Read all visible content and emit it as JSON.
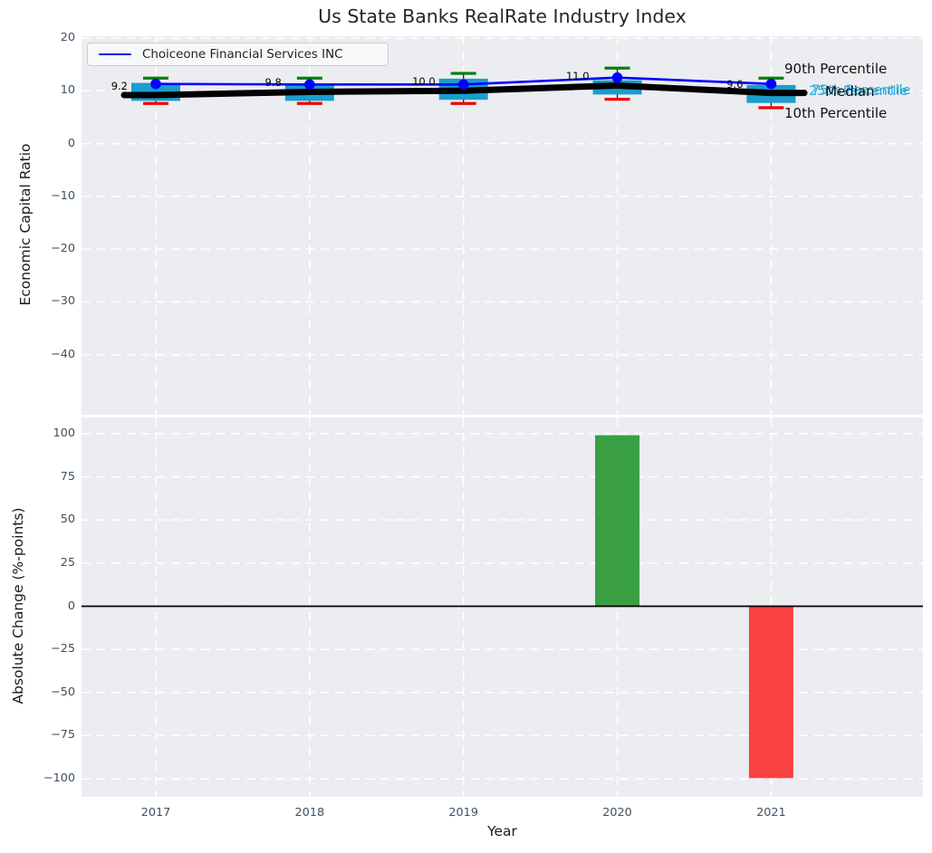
{
  "title": "Us State Banks RealRate Industry Index",
  "legend": {
    "label": "Choiceone Financial Services INC"
  },
  "annotations": {
    "p90": "90th Percentile",
    "p75": "75th Percentile",
    "p25": "25th Percentile",
    "median": "Median",
    "p10": "10th Percentile"
  },
  "colors": {
    "company_line": "#0000ff",
    "median_line": "#000000",
    "box_fill": "#1b9dce",
    "percentile_text": "#2ba8d9",
    "cap_90th": "#008000",
    "cap_10th": "#ee0000",
    "bar_positive": "#3a9e42",
    "bar_negative": "#fa4141",
    "plot_bg": "#ebedf0",
    "grid": "#ffffff",
    "tick_text": "#3e5060"
  },
  "chart_data": [
    {
      "type": "line",
      "title": "Us State Banks RealRate Industry Index",
      "ylabel": "Economic Capital Ratio",
      "x": [
        2017,
        2018,
        2019,
        2020,
        2021
      ],
      "series": [
        {
          "name": "Choiceone Financial Services INC",
          "style": "line+marker",
          "color": "#0000ff",
          "values": [
            11.3,
            11.2,
            11.2,
            12.5,
            11.3
          ]
        },
        {
          "name": "Median",
          "style": "thick-line",
          "color": "#000000",
          "values": [
            9.2,
            9.8,
            10.0,
            11.0,
            9.6
          ],
          "point_labels": [
            "9.2",
            "9.8",
            "10.0",
            "11.0",
            "9.6"
          ]
        }
      ],
      "boxes": {
        "p90": [
          12.4,
          12.4,
          13.3,
          14.3,
          12.4
        ],
        "p75": [
          11.5,
          11.1,
          12.3,
          12.0,
          11.1
        ],
        "p25": [
          8.1,
          8.1,
          8.3,
          9.3,
          7.7
        ],
        "p10": [
          7.6,
          7.6,
          7.6,
          8.4,
          6.8
        ]
      },
      "yticks": [
        20,
        10,
        0,
        -10,
        -20,
        -30,
        -40
      ],
      "ylim": [
        -51.5,
        20.3
      ],
      "xlim": [
        2016.52,
        2022.0
      ],
      "grid": true,
      "legend_position": "upper left"
    },
    {
      "type": "bar",
      "ylabel": "Absolute Change (%-points)",
      "xlabel": "Year",
      "categories": [
        2017,
        2018,
        2019,
        2020,
        2021
      ],
      "values": [
        0,
        0,
        0,
        99.1,
        -99.6
      ],
      "bar_colors": [
        null,
        null,
        null,
        "#3a9e42",
        "#fa4141"
      ],
      "yticks": [
        100,
        75,
        50,
        25,
        0,
        -25,
        -50,
        -75,
        -100
      ],
      "ylim": [
        -110.6,
        109.5
      ],
      "grid": true,
      "zero_line": true
    }
  ]
}
